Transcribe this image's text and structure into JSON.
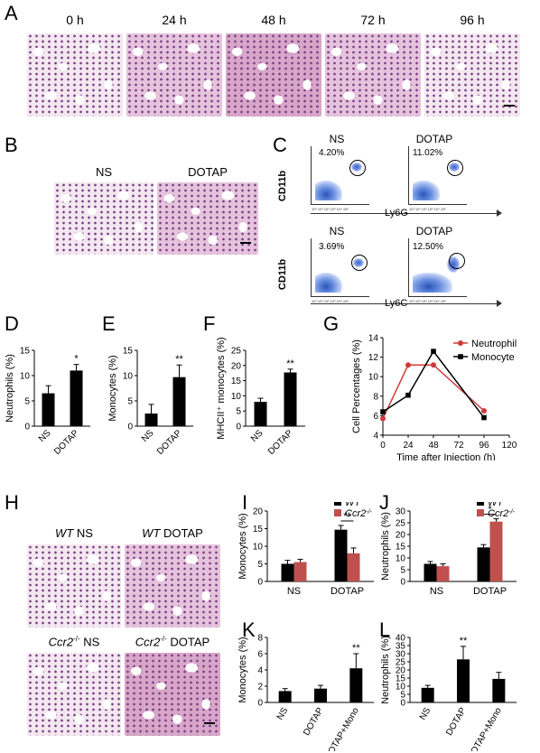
{
  "panels": {
    "A": "A",
    "B": "B",
    "C": "C",
    "D": "D",
    "E": "E",
    "F": "F",
    "G": "G",
    "H": "H",
    "I": "I",
    "J": "J",
    "K": "K",
    "L": "L"
  },
  "panel_a": {
    "timepoints": [
      "0 h",
      "24 h",
      "48 h",
      "72 h",
      "96 h"
    ]
  },
  "panel_b": {
    "labels": [
      "NS",
      "DOTAP"
    ]
  },
  "panel_c": {
    "top": {
      "ylabel": "CD11b",
      "xlabel": "Ly6G",
      "groups": [
        "NS",
        "DOTAP"
      ],
      "percents": [
        "4.20%",
        "11.02%"
      ]
    },
    "bottom": {
      "ylabel": "CD11b",
      "xlabel": "Ly6C",
      "groups": [
        "NS",
        "DOTAP"
      ],
      "percents": [
        "3.69%",
        "12.50%"
      ]
    },
    "tick_labels": "10¹ 10¹ 10² 10³ 10⁴ 10⁵"
  },
  "panel_h": {
    "labels": [
      {
        "italic": "WT",
        "text": " NS"
      },
      {
        "italic": "WT",
        "text": " DOTAP"
      },
      {
        "italic": "Ccr2",
        "sup": "-/-",
        "text": " NS"
      },
      {
        "italic": "Ccr2",
        "sup": "-/-",
        "text": " DOTAP"
      }
    ]
  },
  "chart_data": [
    {
      "id": "D",
      "type": "bar",
      "categories": [
        "NS",
        "DOTAP"
      ],
      "values": [
        6.5,
        11
      ],
      "errors": [
        1.5,
        1.2
      ],
      "significance": [
        "",
        "*"
      ],
      "ylabel": "Neutrophils (%)",
      "ylim": [
        0,
        15
      ],
      "yticks": [
        0,
        5,
        10,
        15
      ]
    },
    {
      "id": "E",
      "type": "bar",
      "categories": [
        "NS",
        "DOTAP"
      ],
      "values": [
        2.5,
        9.7
      ],
      "errors": [
        1.8,
        2.4
      ],
      "significance": [
        "",
        "**"
      ],
      "ylabel": "Monocytes (%)",
      "ylim": [
        0,
        15
      ],
      "yticks": [
        0,
        5,
        10,
        15
      ]
    },
    {
      "id": "F",
      "type": "bar",
      "categories": [
        "NS",
        "DOTAP"
      ],
      "values": [
        8,
        17.7
      ],
      "errors": [
        1.2,
        1.1
      ],
      "significance": [
        "",
        "**"
      ],
      "ylabel": "MHCII⁺ monocytes (%)",
      "ylim": [
        0,
        25
      ],
      "yticks": [
        0,
        5,
        10,
        15,
        20,
        25
      ]
    },
    {
      "id": "G",
      "type": "line",
      "x": [
        0,
        24,
        48,
        96
      ],
      "series": [
        {
          "name": "Neutrophil",
          "color": "#d03a3a",
          "marker": "circle",
          "values": [
            5.7,
            11.2,
            11.2,
            6.5
          ]
        },
        {
          "name": "Monocyte",
          "color": "#000000",
          "marker": "square",
          "values": [
            6.4,
            8.1,
            12.6,
            5.8
          ]
        }
      ],
      "ylabel": "Cell Percentages (%)",
      "xlabel": "Time after Injection (h)",
      "xlim": [
        0,
        120
      ],
      "xticks": [
        0,
        24,
        48,
        72,
        96,
        120
      ],
      "ylim": [
        4,
        14
      ],
      "yticks": [
        4,
        6,
        8,
        10,
        12,
        14
      ],
      "legend": "top-right"
    },
    {
      "id": "I",
      "type": "bar",
      "categories": [
        "NS",
        "DOTAP"
      ],
      "series": [
        {
          "name": "WT",
          "color": "#000000",
          "values": [
            5,
            14.7
          ],
          "errors": [
            1.0,
            1.2
          ]
        },
        {
          "name": "Ccr2",
          "sup": "-/-",
          "color": "#c0504d",
          "values": [
            5.5,
            8
          ],
          "errors": [
            0.8,
            1.5
          ]
        }
      ],
      "significance": {
        "DOTAP": "**"
      },
      "ylabel": "Monocytes (%)",
      "ylim": [
        0,
        20
      ],
      "yticks": [
        0,
        5,
        10,
        15,
        20
      ],
      "legend": "top-right"
    },
    {
      "id": "J",
      "type": "bar",
      "categories": [
        "NS",
        "DOTAP"
      ],
      "series": [
        {
          "name": "WT",
          "color": "#000000",
          "values": [
            7.5,
            14.5
          ],
          "errors": [
            1.0,
            1.2
          ]
        },
        {
          "name": "Ccr2",
          "sup": "-/-",
          "color": "#c0504d",
          "values": [
            6.5,
            25.5
          ],
          "errors": [
            1.0,
            1.2
          ]
        }
      ],
      "significance": {
        "DOTAP": "*"
      },
      "ylabel": "Neutrophils (%)",
      "ylim": [
        0,
        30
      ],
      "yticks": [
        0,
        5,
        10,
        15,
        20,
        25,
        30
      ],
      "legend": "top-right"
    },
    {
      "id": "K",
      "type": "bar",
      "categories": [
        "NS",
        "DOTAP",
        "DOTAP+Mono"
      ],
      "values": [
        1.4,
        1.7,
        4.2
      ],
      "errors": [
        0.3,
        0.4,
        1.8
      ],
      "significance": [
        "",
        "",
        "**"
      ],
      "ylabel": "Monocytes (%)",
      "ylim": [
        0,
        8
      ],
      "yticks": [
        0,
        2,
        4,
        6,
        8
      ]
    },
    {
      "id": "L",
      "type": "bar",
      "categories": [
        "NS",
        "DOTAP",
        "DOTAP+Mono"
      ],
      "values": [
        9,
        26.5,
        14.5
      ],
      "errors": [
        1.5,
        8,
        4
      ],
      "significance": [
        "",
        "**",
        ""
      ],
      "ylabel": "Neutrophils (%)",
      "ylim": [
        0,
        40
      ],
      "yticks": [
        0,
        5,
        10,
        15,
        20,
        25,
        30,
        35,
        40
      ]
    }
  ]
}
